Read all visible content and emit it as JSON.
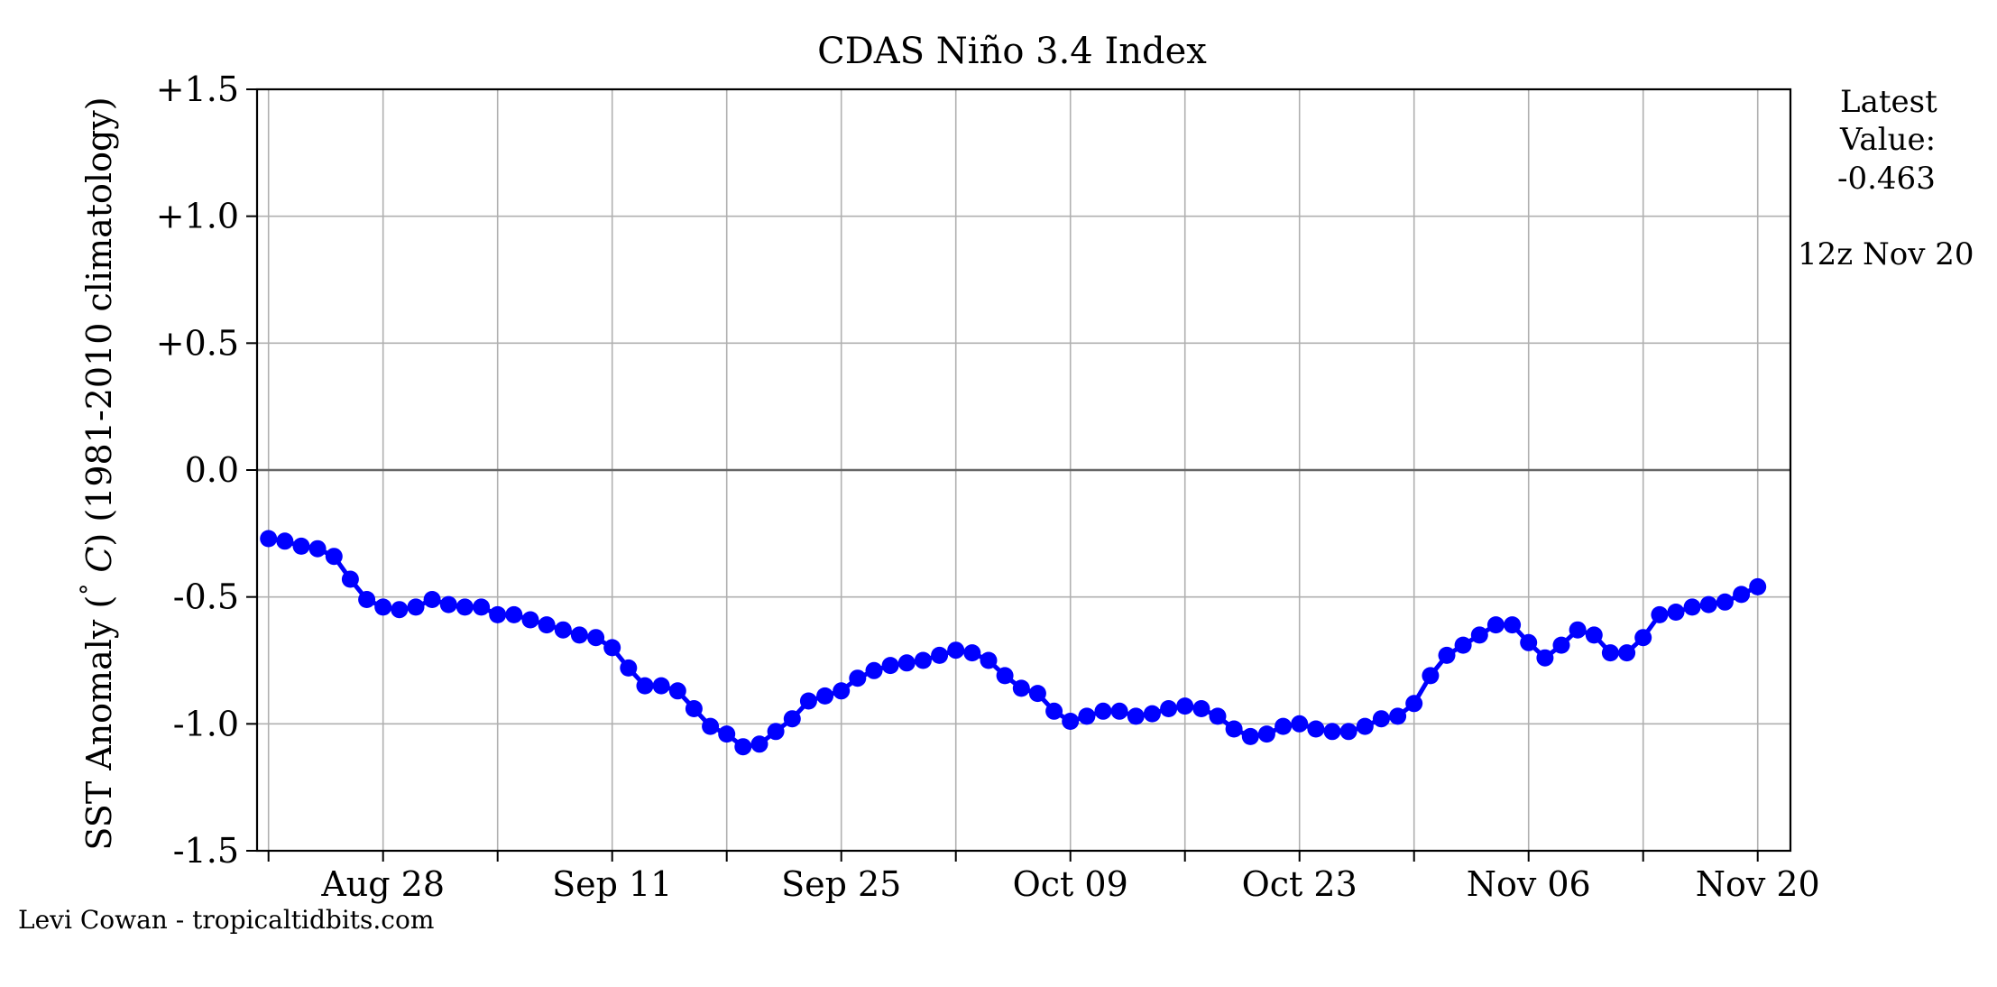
{
  "chart_data": {
    "type": "line",
    "title": "CDAS Niño 3.4 Index",
    "ylabel_parts": [
      "SST Anomaly (",
      "°",
      " C",
      ") (1981-2010 climatology)"
    ],
    "ylim": [
      -1.5,
      1.5
    ],
    "yticks": [
      {
        "value": 1.5,
        "label": "+1.5"
      },
      {
        "value": 1.0,
        "label": "+1.0"
      },
      {
        "value": 0.5,
        "label": "+0.5"
      },
      {
        "value": 0.0,
        "label": "0.0"
      },
      {
        "value": -0.5,
        "label": "-0.5"
      },
      {
        "value": -1.0,
        "label": "-1.0"
      },
      {
        "value": -1.5,
        "label": "-1.5"
      }
    ],
    "x_range_day_index": [
      -0.7,
      93.0
    ],
    "xticks_major": [
      {
        "day": 7,
        "label": "Aug 28"
      },
      {
        "day": 21,
        "label": "Sep 11"
      },
      {
        "day": 35,
        "label": "Sep 25"
      },
      {
        "day": 49,
        "label": "Oct 09"
      },
      {
        "day": 63,
        "label": "Oct 23"
      },
      {
        "day": 77,
        "label": "Nov 06"
      },
      {
        "day": 91,
        "label": "Nov 20"
      }
    ],
    "xticks_minor_days": [
      0,
      14,
      28,
      42,
      56,
      70,
      84
    ],
    "grid": true,
    "zero_line": true,
    "series": [
      {
        "color": "#0000ff",
        "start_date": "Aug 21",
        "values": [
          -0.27,
          -0.28,
          -0.3,
          -0.31,
          -0.34,
          -0.43,
          -0.51,
          -0.54,
          -0.55,
          -0.54,
          -0.51,
          -0.53,
          -0.54,
          -0.54,
          -0.57,
          -0.57,
          -0.59,
          -0.61,
          -0.63,
          -0.65,
          -0.66,
          -0.7,
          -0.78,
          -0.85,
          -0.85,
          -0.87,
          -0.94,
          -1.01,
          -1.04,
          -1.09,
          -1.08,
          -1.03,
          -0.98,
          -0.91,
          -0.89,
          -0.87,
          -0.82,
          -0.79,
          -0.77,
          -0.76,
          -0.75,
          -0.73,
          -0.71,
          -0.72,
          -0.75,
          -0.81,
          -0.86,
          -0.88,
          -0.95,
          -0.99,
          -0.97,
          -0.95,
          -0.95,
          -0.97,
          -0.96,
          -0.94,
          -0.93,
          -0.94,
          -0.97,
          -1.02,
          -1.05,
          -1.04,
          -1.01,
          -1.0,
          -1.02,
          -1.03,
          -1.03,
          -1.01,
          -0.98,
          -0.97,
          -0.92,
          -0.81,
          -0.73,
          -0.69,
          -0.65,
          -0.61,
          -0.61,
          -0.68,
          -0.74,
          -0.69,
          -0.63,
          -0.65,
          -0.72,
          -0.72,
          -0.66,
          -0.57,
          -0.56,
          -0.54,
          -0.53,
          -0.52,
          -0.49,
          -0.46
        ]
      }
    ],
    "latest_value_label": [
      "Latest",
      "Value:"
    ],
    "latest_value": "-0.463",
    "latest_time": "12z Nov 20",
    "credit": "Levi Cowan - tropicaltidbits.com"
  }
}
